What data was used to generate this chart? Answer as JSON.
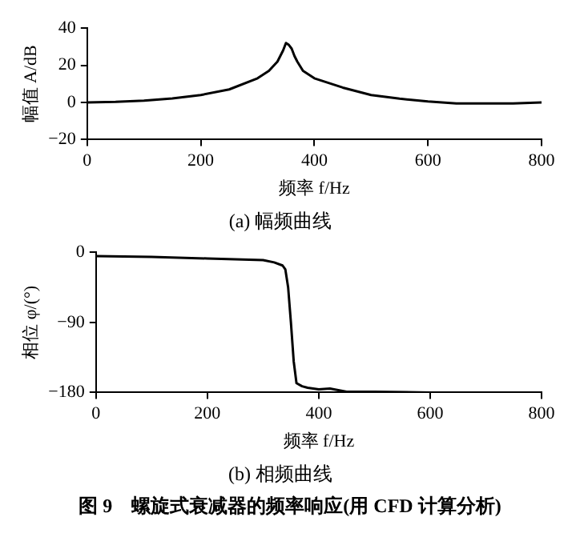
{
  "chart_data": [
    {
      "type": "line",
      "title": "(a) 幅频曲线",
      "xlabel": "频率 f/Hz",
      "ylabel": "幅值 A/dB",
      "xlim": [
        0,
        800
      ],
      "xticks": [
        0,
        200,
        400,
        600,
        800
      ],
      "ylim": [
        -20,
        40
      ],
      "yticks": [
        -20,
        0,
        20,
        40
      ],
      "grid": false,
      "legend": false,
      "marker": "none",
      "line_style": "solid",
      "series": [
        {
          "color": "#000000",
          "x": [
            0,
            50,
            100,
            150,
            200,
            250,
            300,
            320,
            335,
            345,
            350,
            355,
            360,
            365,
            370,
            380,
            400,
            450,
            500,
            550,
            600,
            650,
            700,
            750,
            800
          ],
          "values": [
            0,
            0.3,
            1,
            2.2,
            4,
            7,
            13,
            17,
            22,
            28,
            32,
            31,
            29,
            25,
            22,
            17,
            13,
            8,
            4,
            2,
            0.5,
            -0.5,
            -0.5,
            -0.5,
            0
          ]
        }
      ]
    },
    {
      "type": "line",
      "title": "(b) 相频曲线",
      "xlabel": "频率 f/Hz",
      "ylabel": "相位 φ/(°)",
      "xlim": [
        0,
        800
      ],
      "xticks": [
        0,
        200,
        400,
        600,
        800
      ],
      "ylim": [
        -180,
        0
      ],
      "yticks": [
        -180,
        -90,
        0
      ],
      "grid": false,
      "legend": false,
      "marker": "none",
      "line_style": "solid",
      "annotations": [
        "图 9　螺旋式衰减器的频率响应(用 CFD 计算分析)"
      ],
      "series": [
        {
          "color": "#000000",
          "x": [
            0,
            100,
            200,
            300,
            320,
            335,
            340,
            345,
            350,
            355,
            360,
            370,
            380,
            400,
            420,
            450,
            500,
            600,
            700,
            800
          ],
          "values": [
            -5,
            -6,
            -8,
            -10,
            -13,
            -17,
            -22,
            -45,
            -90,
            -140,
            -168,
            -172,
            -174,
            -176,
            -175,
            -179,
            -179,
            -180,
            -180,
            -180
          ]
        }
      ]
    }
  ]
}
